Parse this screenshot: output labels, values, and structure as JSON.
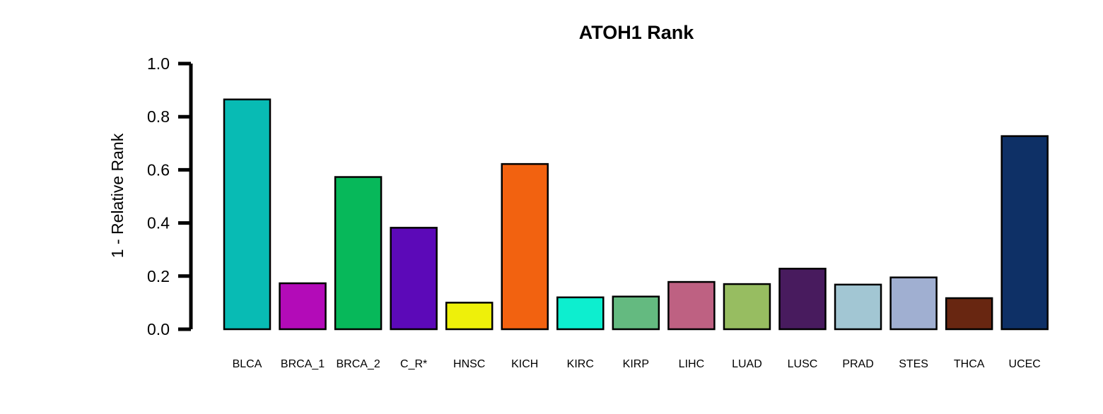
{
  "chart_data": {
    "type": "bar",
    "title": "ATOH1 Rank",
    "xlabel": "",
    "ylabel": "1 - Relative Rank",
    "ylim": [
      0,
      1
    ],
    "yticks": [
      "0.0",
      "0.2",
      "0.4",
      "0.6",
      "0.8",
      "1.0"
    ],
    "grid": false,
    "legend": "none",
    "categories": [
      "BLCA",
      "BRCA_1",
      "BRCA_2",
      "C_R*",
      "HNSC",
      "KICH",
      "KIRC",
      "KIRP",
      "LIHC",
      "LUAD",
      "LUSC",
      "PRAD",
      "STES",
      "THCA",
      "UCEC"
    ],
    "values": [
      0.865,
      0.173,
      0.573,
      0.382,
      0.1,
      0.622,
      0.12,
      0.123,
      0.178,
      0.17,
      0.228,
      0.168,
      0.195,
      0.117,
      0.727
    ],
    "colors": [
      "#08BBB4",
      "#B30BB8",
      "#07B85A",
      "#5C09B8",
      "#EEF00A",
      "#F26210",
      "#0DEECF",
      "#64BA80",
      "#BE6182",
      "#97BD61",
      "#481B5E",
      "#A2C6D3",
      "#A0AFD1",
      "#682611",
      "#0E3066"
    ]
  }
}
